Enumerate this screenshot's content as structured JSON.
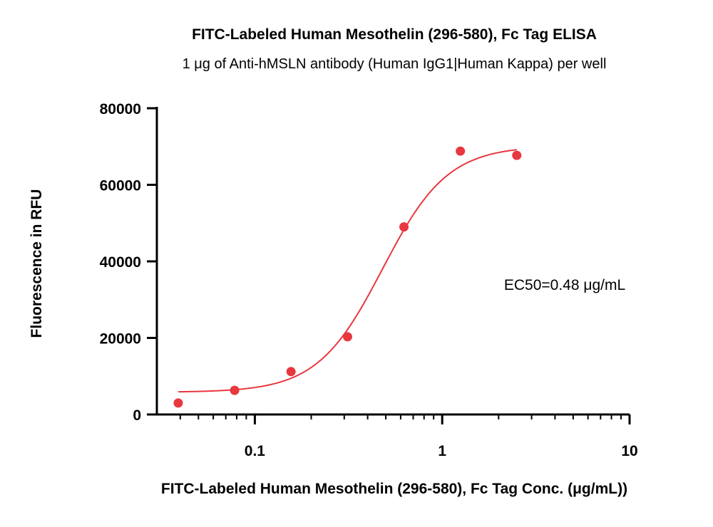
{
  "chart_data": {
    "type": "scatter",
    "title": "FITC-Labeled Human Mesothelin (296-580), Fc Tag ELISA",
    "subtitle": "1 μg of Anti-hMSLN antibody (Human IgG1|Human Kappa) per well",
    "xlabel": "FITC-Labeled Human Mesothelin (296-580), Fc Tag Conc. (μg/mL))",
    "ylabel": "Fluorescence in RFU",
    "xscale": "log",
    "xlim": [
      0.03,
      10
    ],
    "ylim": [
      0,
      80000
    ],
    "x_ticks": [
      0.1,
      1,
      10
    ],
    "x_tick_labels": [
      "0.1",
      "1",
      "10"
    ],
    "y_ticks": [
      0,
      20000,
      40000,
      60000,
      80000
    ],
    "y_tick_labels": [
      "0",
      "20000",
      "40000",
      "60000",
      "80000"
    ],
    "grid": false,
    "series": [
      {
        "points": [
          {
            "x": 0.039,
            "y": 3000
          },
          {
            "x": 0.078,
            "y": 6300
          },
          {
            "x": 0.156,
            "y": 11200
          },
          {
            "x": 0.3125,
            "y": 20300
          },
          {
            "x": 0.625,
            "y": 49000
          },
          {
            "x": 1.25,
            "y": 68800
          },
          {
            "x": 2.5,
            "y": 67700
          }
        ],
        "fit": {
          "model": "4PL",
          "bottom": 5800,
          "top": 70200,
          "ec50": 0.48,
          "hill": 2.5,
          "x_range": [
            0.039,
            2.5
          ]
        },
        "color": "#e8373f"
      }
    ],
    "annotation": "EC50=0.48 μg/mL"
  }
}
